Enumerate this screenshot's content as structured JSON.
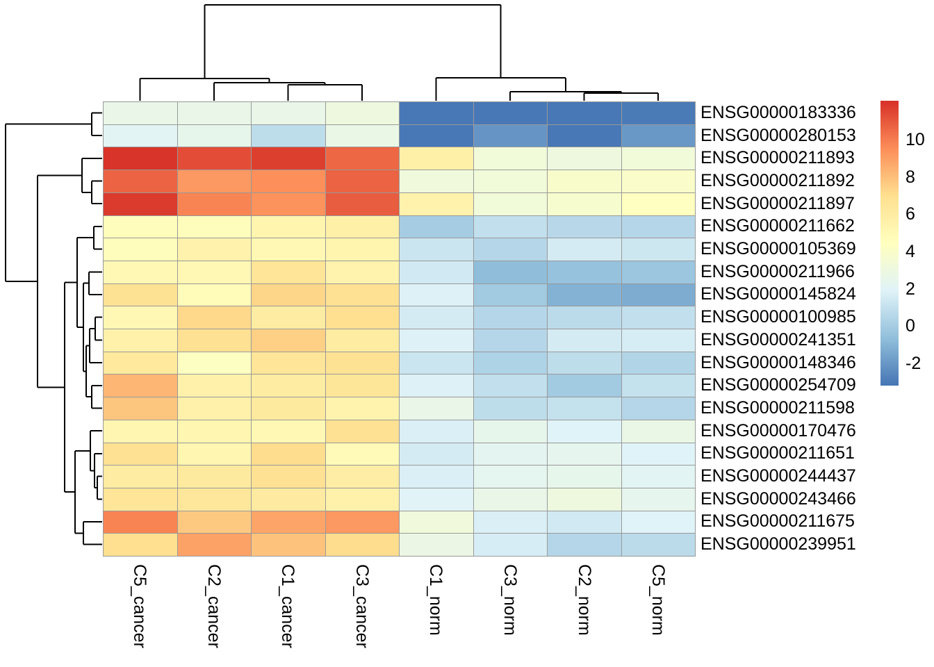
{
  "chart_data": {
    "type": "heatmap",
    "title": "",
    "xlabel": "",
    "ylabel": "",
    "legend_position": "right",
    "row_labels_position": "right",
    "col_labels_rotation_deg": 90,
    "grid_color": "#999999",
    "dendrogram_line_color": "#000000",
    "columns": [
      "C5_cancer",
      "C2_cancer",
      "C1_cancer",
      "C3_cancer",
      "C1_norm",
      "C3_norm",
      "C2_norm",
      "C5_norm"
    ],
    "rows": [
      "ENSG00000183336",
      "ENSG00000280153",
      "ENSG00000211893",
      "ENSG00000211892",
      "ENSG00000211897",
      "ENSG00000211662",
      "ENSG00000105369",
      "ENSG00000211966",
      "ENSG00000145824",
      "ENSG00000100985",
      "ENSG00000241351",
      "ENSG00000148346",
      "ENSG00000254709",
      "ENSG00000211598",
      "ENSG00000170476",
      "ENSG00000211651",
      "ENSG00000244437",
      "ENSG00000243466",
      "ENSG00000211675",
      "ENSG00000239951"
    ],
    "values": [
      [
        2.6,
        2.6,
        2.6,
        3.0,
        -3.1,
        -3.1,
        -3.1,
        -3.0
      ],
      [
        2.1,
        2.5,
        0.8,
        2.7,
        -3.1,
        -2.1,
        -3.1,
        -2.0
      ],
      [
        12.0,
        11.3,
        11.7,
        10.6,
        5.7,
        3.3,
        3.0,
        3.3
      ],
      [
        10.7,
        9.2,
        9.5,
        10.7,
        3.2,
        3.3,
        3.9,
        4.0
      ],
      [
        11.8,
        9.8,
        9.4,
        10.9,
        5.5,
        3.3,
        3.8,
        4.4
      ],
      [
        4.6,
        4.6,
        5.3,
        5.7,
        0.0,
        0.9,
        0.6,
        0.5
      ],
      [
        4.6,
        5.5,
        5.1,
        5.3,
        1.2,
        0.5,
        1.5,
        1.3
      ],
      [
        5.0,
        5.1,
        6.6,
        5.4,
        1.4,
        -0.7,
        -0.5,
        -0.3
      ],
      [
        6.8,
        4.8,
        7.3,
        6.9,
        1.8,
        -0.1,
        -1.1,
        -1.3
      ],
      [
        5.1,
        7.2,
        6.0,
        7.0,
        1.5,
        0.5,
        0.7,
        0.9
      ],
      [
        5.6,
        6.9,
        7.5,
        6.0,
        1.8,
        0.5,
        1.5,
        1.6
      ],
      [
        6.3,
        4.3,
        6.6,
        6.8,
        1.2,
        0.3,
        0.8,
        0.4
      ],
      [
        8.3,
        5.6,
        6.0,
        6.5,
        1.8,
        0.9,
        -0.1,
        1.0
      ],
      [
        7.8,
        5.6,
        6.2,
        5.4,
        2.6,
        0.8,
        1.0,
        0.5
      ],
      [
        5.2,
        5.2,
        5.0,
        6.9,
        1.7,
        2.5,
        1.9,
        2.7
      ],
      [
        6.9,
        5.2,
        7.1,
        4.9,
        1.5,
        2.2,
        2.4,
        1.9
      ],
      [
        6.0,
        6.2,
        6.9,
        5.9,
        1.7,
        2.3,
        2.5,
        2.1
      ],
      [
        6.6,
        6.4,
        6.1,
        5.6,
        2.0,
        2.6,
        3.0,
        2.4
      ],
      [
        9.8,
        7.7,
        8.8,
        9.2,
        3.2,
        1.7,
        1.4,
        1.9
      ],
      [
        7.0,
        8.9,
        7.9,
        7.1,
        2.8,
        1.6,
        0.5,
        0.7
      ]
    ],
    "color_scale": {
      "palette_low_to_high": [
        "#4575b4",
        "#91bfdb",
        "#e0f3f8",
        "#ffffbf",
        "#fee090",
        "#fc8d59",
        "#d73027"
      ],
      "domain": [
        -3.2,
        12.1
      ],
      "legend_tick_values": [
        "10",
        "8",
        "6",
        "4",
        "2",
        "0",
        "-2"
      ]
    },
    "row_dendrogram_merges": [
      [
        "R4",
        "R5",
        15
      ],
      [
        "R3",
        "M1",
        29
      ],
      [
        "R1",
        "R2",
        15
      ],
      [
        "R6",
        "R7",
        12
      ],
      [
        "R8",
        "R9",
        19
      ],
      [
        "R10",
        "R11",
        10
      ],
      [
        "M6",
        "R12",
        18
      ],
      [
        "R13",
        "R14",
        15
      ],
      [
        "M7",
        "M8",
        23
      ],
      [
        "M5",
        "M9",
        27
      ],
      [
        "M4",
        "M10",
        36
      ],
      [
        "R17",
        "R18",
        7
      ],
      [
        "R16",
        "M12",
        11
      ],
      [
        "R15",
        "M13",
        17
      ],
      [
        "R19",
        "R20",
        27
      ],
      [
        "M14",
        "M15",
        39
      ],
      [
        "M11",
        "M16",
        54
      ],
      [
        "M2",
        "M17",
        93
      ],
      [
        "M3",
        "M18",
        139
      ]
    ],
    "col_dendrogram_merges": [
      [
        "C3",
        "C4",
        23
      ],
      [
        "C2",
        "M1",
        26
      ],
      [
        "C1",
        "M2",
        32
      ],
      [
        "C7",
        "C8",
        11
      ],
      [
        "C6",
        "M4",
        13
      ],
      [
        "C5",
        "M5",
        33
      ],
      [
        "M3",
        "M6",
        138
      ]
    ]
  }
}
